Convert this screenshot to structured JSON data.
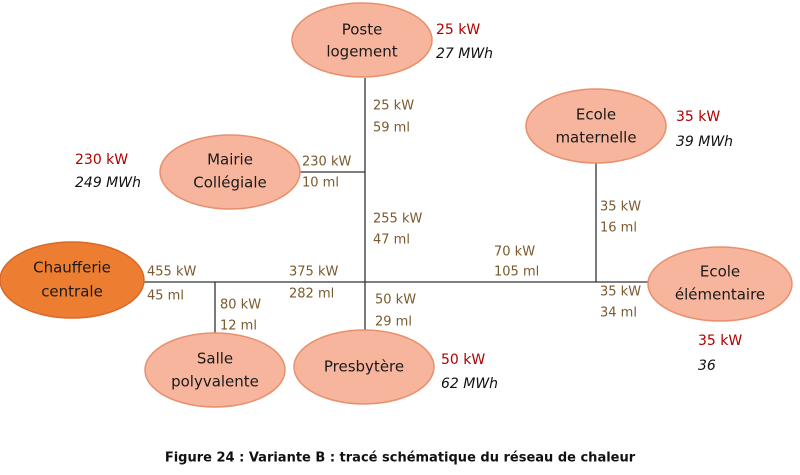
{
  "nodes": [
    {
      "label": [
        "Poste",
        "logement"
      ],
      "power": "25 kW",
      "energy": "27 MWh"
    },
    {
      "label": [
        "Mairie",
        "Collégiale"
      ],
      "power": "230 kW",
      "energy": "249 MWh"
    },
    {
      "label": [
        "Ecole",
        "maternelle"
      ],
      "power": "35 kW",
      "energy": "39 MWh"
    },
    {
      "label": [
        "Chaufferie",
        "centrale"
      ]
    },
    {
      "label": [
        "Salle",
        "polyvalente"
      ]
    },
    {
      "label": [
        "Presbytère"
      ],
      "power": "50 kW",
      "energy": "62 MWh"
    },
    {
      "label": [
        "Ecole",
        "élémentaire"
      ],
      "power": "35 kW",
      "energy": "36"
    }
  ],
  "edges": [
    {
      "power": "25 kW",
      "length": "59 ml"
    },
    {
      "power": "230 kW",
      "length": "10 ml"
    },
    {
      "power": "255 kW",
      "length": "47 ml"
    },
    {
      "power": "455 kW",
      "length": "45 ml"
    },
    {
      "power": "375 kW",
      "length": "282 ml"
    },
    {
      "power": "80 kW",
      "length": "12 ml"
    },
    {
      "power": "50 kW",
      "length": "29 ml"
    },
    {
      "power": "70 kW",
      "length": "105 ml"
    },
    {
      "power": "35 kW",
      "length": "16 ml"
    },
    {
      "power": "35 kW",
      "length": "34 ml"
    }
  ],
  "caption": "Figure 24 : Variante B : tracé schématique du réseau de chaleur"
}
